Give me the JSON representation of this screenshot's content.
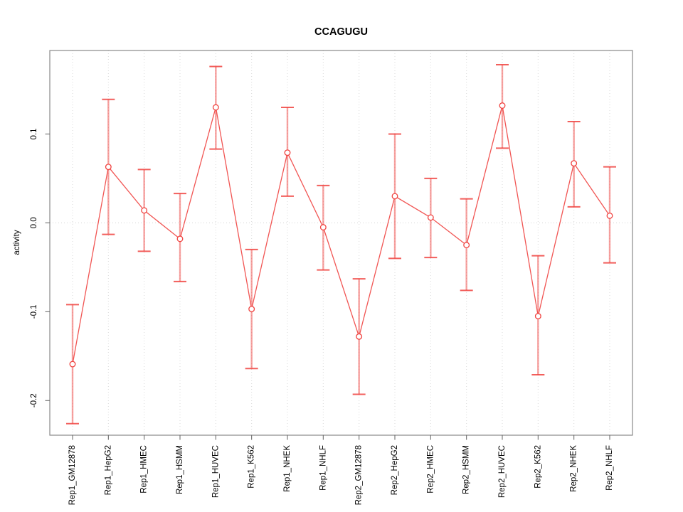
{
  "figure": {
    "title": "CCAGUGU"
  },
  "chart_data": {
    "type": "line",
    "title": "CCAGUGU",
    "xlabel": "",
    "ylabel": "activity",
    "legend": "none",
    "marker": "open-circle",
    "grid": "vertical dotted gridline at each category; horizontal dotted line at y=0",
    "categories": [
      "Rep1_GM12878",
      "Rep1_HepG2",
      "Rep1_HMEC",
      "Rep1_HSMM",
      "Rep1_HUVEC",
      "Rep1_K562",
      "Rep1_NHEK",
      "Rep1_NHLF",
      "Rep2_GM12878",
      "Rep2_HepG2",
      "Rep2_HMEC",
      "Rep2_HSMM",
      "Rep2_HUVEC",
      "Rep2_K562",
      "Rep2_NHEK",
      "Rep2_NHLF"
    ],
    "series": [
      {
        "name": "activity",
        "values": [
          -0.159,
          0.063,
          0.014,
          -0.018,
          0.13,
          -0.097,
          0.079,
          -0.005,
          -0.128,
          0.03,
          0.006,
          -0.025,
          0.132,
          -0.105,
          0.067,
          0.008
        ],
        "upper": [
          -0.092,
          0.139,
          0.06,
          0.033,
          0.176,
          -0.03,
          0.13,
          0.042,
          -0.063,
          0.1,
          0.05,
          0.027,
          0.178,
          -0.037,
          0.114,
          0.063
        ],
        "lower": [
          -0.226,
          -0.013,
          -0.032,
          -0.066,
          0.083,
          -0.164,
          0.03,
          -0.053,
          -0.193,
          -0.04,
          -0.039,
          -0.076,
          0.084,
          -0.171,
          0.018,
          -0.045
        ]
      }
    ],
    "yticks": [
      0.1,
      0.0,
      -0.1,
      -0.2
    ],
    "ytick_labels": [
      "0.1",
      "0.0",
      "-0.1",
      "-0.2"
    ],
    "ylim": [
      -0.239,
      0.194
    ],
    "colors": {
      "series": "#f04340",
      "grid": "#d9d9d9",
      "zero_line": "#d4d4d4",
      "frame": "#898989",
      "tick": "#6e6e6e",
      "text": "#000000"
    }
  }
}
